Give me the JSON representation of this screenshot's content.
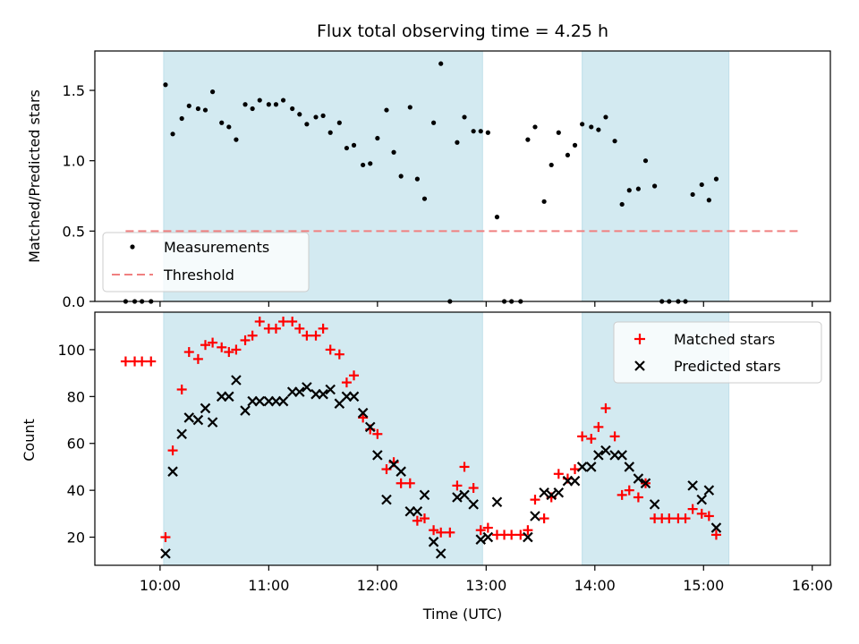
{
  "chart_data": [
    {
      "type": "scatter",
      "title": "Flux total observing time = 4.25 h",
      "xlabel": "",
      "ylabel": "Matched/Predicted stars",
      "xlim": [
        "09:24",
        "16:10"
      ],
      "ylim": [
        0,
        1.78
      ],
      "yticks": [
        {
          "value": 0,
          "label": "0.0"
        },
        {
          "value": 0.5,
          "label": "0.5"
        },
        {
          "value": 1.0,
          "label": "1.0"
        },
        {
          "value": 1.5,
          "label": "1.5"
        }
      ],
      "shaded_intervals": [
        [
          "10:02",
          "12:58"
        ],
        [
          "13:53",
          "15:14"
        ]
      ],
      "shade_color": "#d3eaf1",
      "legend_position": "lower left",
      "series": [
        {
          "name": "Measurements",
          "marker": "dot",
          "color": "#000000",
          "points": [
            [
              "09:41",
              0
            ],
            [
              "09:46",
              0
            ],
            [
              "09:50",
              0
            ],
            [
              "09:55",
              0
            ],
            [
              "10:03",
              1.54
            ],
            [
              "10:07",
              1.19
            ],
            [
              "10:12",
              1.3
            ],
            [
              "10:16",
              1.39
            ],
            [
              "10:21",
              1.37
            ],
            [
              "10:25",
              1.36
            ],
            [
              "10:29",
              1.49
            ],
            [
              "10:34",
              1.27
            ],
            [
              "10:38",
              1.24
            ],
            [
              "10:42",
              1.15
            ],
            [
              "10:47",
              1.4
            ],
            [
              "10:51",
              1.37
            ],
            [
              "10:55",
              1.43
            ],
            [
              "11:00",
              1.4
            ],
            [
              "11:04",
              1.4
            ],
            [
              "11:08",
              1.43
            ],
            [
              "11:13",
              1.37
            ],
            [
              "11:17",
              1.33
            ],
            [
              "11:21",
              1.26
            ],
            [
              "11:26",
              1.31
            ],
            [
              "11:30",
              1.32
            ],
            [
              "11:34",
              1.2
            ],
            [
              "11:39",
              1.27
            ],
            [
              "11:43",
              1.09
            ],
            [
              "11:47",
              1.11
            ],
            [
              "11:52",
              0.97
            ],
            [
              "11:56",
              0.98
            ],
            [
              "12:00",
              1.16
            ],
            [
              "12:05",
              1.36
            ],
            [
              "12:09",
              1.06
            ],
            [
              "12:13",
              0.89
            ],
            [
              "12:18",
              1.38
            ],
            [
              "12:22",
              0.87
            ],
            [
              "12:26",
              0.73
            ],
            [
              "12:31",
              1.27
            ],
            [
              "12:35",
              1.69
            ],
            [
              "12:40",
              0
            ],
            [
              "12:44",
              1.13
            ],
            [
              "12:48",
              1.31
            ],
            [
              "12:53",
              1.21
            ],
            [
              "12:57",
              1.21
            ],
            [
              "13:01",
              1.2
            ],
            [
              "13:06",
              0.6
            ],
            [
              "13:10",
              0
            ],
            [
              "13:14",
              0
            ],
            [
              "13:19",
              0
            ],
            [
              "13:23",
              1.15
            ],
            [
              "13:27",
              1.24
            ],
            [
              "13:32",
              0.71
            ],
            [
              "13:36",
              0.97
            ],
            [
              "13:40",
              1.2
            ],
            [
              "13:45",
              1.04
            ],
            [
              "13:49",
              1.11
            ],
            [
              "13:53",
              1.26
            ],
            [
              "13:58",
              1.24
            ],
            [
              "14:02",
              1.22
            ],
            [
              "14:06",
              1.31
            ],
            [
              "14:11",
              1.14
            ],
            [
              "14:15",
              0.69
            ],
            [
              "14:19",
              0.79
            ],
            [
              "14:24",
              0.8
            ],
            [
              "14:28",
              1.0
            ],
            [
              "14:33",
              0.82
            ],
            [
              "14:37",
              0
            ],
            [
              "14:41",
              0
            ],
            [
              "14:46",
              0
            ],
            [
              "14:50",
              0
            ],
            [
              "14:54",
              0.76
            ],
            [
              "14:59",
              0.83
            ],
            [
              "15:03",
              0.72
            ],
            [
              "15:07",
              0.87
            ]
          ]
        },
        {
          "name": "Threshold",
          "type": "line",
          "style": "dashed",
          "color": "#f08080",
          "points": [
            [
              "09:41",
              0.5
            ],
            [
              "15:52",
              0.5
            ]
          ]
        }
      ]
    },
    {
      "type": "scatter",
      "title": "",
      "xlabel": "Time (UTC)",
      "ylabel": "Count",
      "xlim": [
        "09:24",
        "16:10"
      ],
      "ylim": [
        8,
        116
      ],
      "xticks": [
        "10:00",
        "11:00",
        "12:00",
        "13:00",
        "14:00",
        "15:00",
        "16:00"
      ],
      "yticks": [
        {
          "value": 20,
          "label": "20"
        },
        {
          "value": 40,
          "label": "40"
        },
        {
          "value": 60,
          "label": "60"
        },
        {
          "value": 80,
          "label": "80"
        },
        {
          "value": 100,
          "label": "100"
        }
      ],
      "shaded_intervals": [
        [
          "10:02",
          "12:58"
        ],
        [
          "13:53",
          "15:14"
        ]
      ],
      "shade_color": "#d3eaf1",
      "legend_position": "upper right",
      "series": [
        {
          "name": "Matched stars",
          "marker": "plus",
          "color": "#ff0000",
          "points": [
            [
              "09:41",
              95
            ],
            [
              "09:46",
              95
            ],
            [
              "09:50",
              95
            ],
            [
              "09:55",
              95
            ],
            [
              "10:03",
              20
            ],
            [
              "10:07",
              57
            ],
            [
              "10:12",
              83
            ],
            [
              "10:16",
              99
            ],
            [
              "10:21",
              96
            ],
            [
              "10:25",
              102
            ],
            [
              "10:29",
              103
            ],
            [
              "10:34",
              101
            ],
            [
              "10:38",
              99
            ],
            [
              "10:42",
              100
            ],
            [
              "10:47",
              104
            ],
            [
              "10:51",
              106
            ],
            [
              "10:55",
              112
            ],
            [
              "11:00",
              109
            ],
            [
              "11:04",
              109
            ],
            [
              "11:08",
              112
            ],
            [
              "11:13",
              112
            ],
            [
              "11:17",
              109
            ],
            [
              "11:21",
              106
            ],
            [
              "11:26",
              106
            ],
            [
              "11:30",
              109
            ],
            [
              "11:34",
              100
            ],
            [
              "11:39",
              98
            ],
            [
              "11:43",
              86
            ],
            [
              "11:47",
              89
            ],
            [
              "11:52",
              71
            ],
            [
              "11:56",
              66
            ],
            [
              "12:00",
              64
            ],
            [
              "12:05",
              49
            ],
            [
              "12:09",
              52
            ],
            [
              "12:13",
              43
            ],
            [
              "12:18",
              43
            ],
            [
              "12:22",
              27
            ],
            [
              "12:26",
              28
            ],
            [
              "12:31",
              23
            ],
            [
              "12:35",
              22
            ],
            [
              "12:40",
              22
            ],
            [
              "12:44",
              42
            ],
            [
              "12:48",
              50
            ],
            [
              "12:53",
              41
            ],
            [
              "12:57",
              23
            ],
            [
              "13:01",
              24
            ],
            [
              "13:06",
              21
            ],
            [
              "13:10",
              21
            ],
            [
              "13:14",
              21
            ],
            [
              "13:19",
              21
            ],
            [
              "13:23",
              23
            ],
            [
              "13:27",
              36
            ],
            [
              "13:32",
              28
            ],
            [
              "13:36",
              37
            ],
            [
              "13:40",
              47
            ],
            [
              "13:45",
              45
            ],
            [
              "13:49",
              49
            ],
            [
              "13:53",
              63
            ],
            [
              "13:58",
              62
            ],
            [
              "14:02",
              67
            ],
            [
              "14:06",
              75
            ],
            [
              "14:11",
              63
            ],
            [
              "14:15",
              38
            ],
            [
              "14:19",
              40
            ],
            [
              "14:24",
              37
            ],
            [
              "14:28",
              43
            ],
            [
              "14:33",
              28
            ],
            [
              "14:37",
              28
            ],
            [
              "14:41",
              28
            ],
            [
              "14:46",
              28
            ],
            [
              "14:50",
              28
            ],
            [
              "14:54",
              32
            ],
            [
              "14:59",
              30
            ],
            [
              "15:03",
              29
            ],
            [
              "15:07",
              21
            ]
          ]
        },
        {
          "name": "Predicted stars",
          "marker": "x",
          "color": "#000000",
          "points": [
            [
              "10:03",
              13
            ],
            [
              "10:07",
              48
            ],
            [
              "10:12",
              64
            ],
            [
              "10:16",
              71
            ],
            [
              "10:21",
              70
            ],
            [
              "10:25",
              75
            ],
            [
              "10:29",
              69
            ],
            [
              "10:34",
              80
            ],
            [
              "10:38",
              80
            ],
            [
              "10:42",
              87
            ],
            [
              "10:47",
              74
            ],
            [
              "10:51",
              78
            ],
            [
              "10:55",
              78
            ],
            [
              "11:00",
              78
            ],
            [
              "11:04",
              78
            ],
            [
              "11:08",
              78
            ],
            [
              "11:13",
              82
            ],
            [
              "11:17",
              82
            ],
            [
              "11:21",
              84
            ],
            [
              "11:26",
              81
            ],
            [
              "11:30",
              81
            ],
            [
              "11:34",
              83
            ],
            [
              "11:39",
              77
            ],
            [
              "11:43",
              80
            ],
            [
              "11:47",
              80
            ],
            [
              "11:52",
              73
            ],
            [
              "11:56",
              67
            ],
            [
              "12:00",
              55
            ],
            [
              "12:05",
              36
            ],
            [
              "12:09",
              51
            ],
            [
              "12:13",
              48
            ],
            [
              "12:18",
              31
            ],
            [
              "12:22",
              31
            ],
            [
              "12:26",
              38
            ],
            [
              "12:31",
              18
            ],
            [
              "12:35",
              13
            ],
            [
              "12:44",
              37
            ],
            [
              "12:48",
              38
            ],
            [
              "12:53",
              34
            ],
            [
              "12:57",
              19
            ],
            [
              "13:01",
              20
            ],
            [
              "13:06",
              35
            ],
            [
              "13:23",
              20
            ],
            [
              "13:27",
              29
            ],
            [
              "13:32",
              39
            ],
            [
              "13:36",
              38
            ],
            [
              "13:40",
              39
            ],
            [
              "13:45",
              44
            ],
            [
              "13:49",
              44
            ],
            [
              "13:53",
              50
            ],
            [
              "13:58",
              50
            ],
            [
              "14:02",
              55
            ],
            [
              "14:06",
              57
            ],
            [
              "14:11",
              55
            ],
            [
              "14:15",
              55
            ],
            [
              "14:19",
              50
            ],
            [
              "14:24",
              45
            ],
            [
              "14:28",
              43
            ],
            [
              "14:33",
              34
            ],
            [
              "14:54",
              42
            ],
            [
              "14:59",
              36
            ],
            [
              "15:03",
              40
            ],
            [
              "15:07",
              24
            ]
          ]
        }
      ]
    }
  ]
}
